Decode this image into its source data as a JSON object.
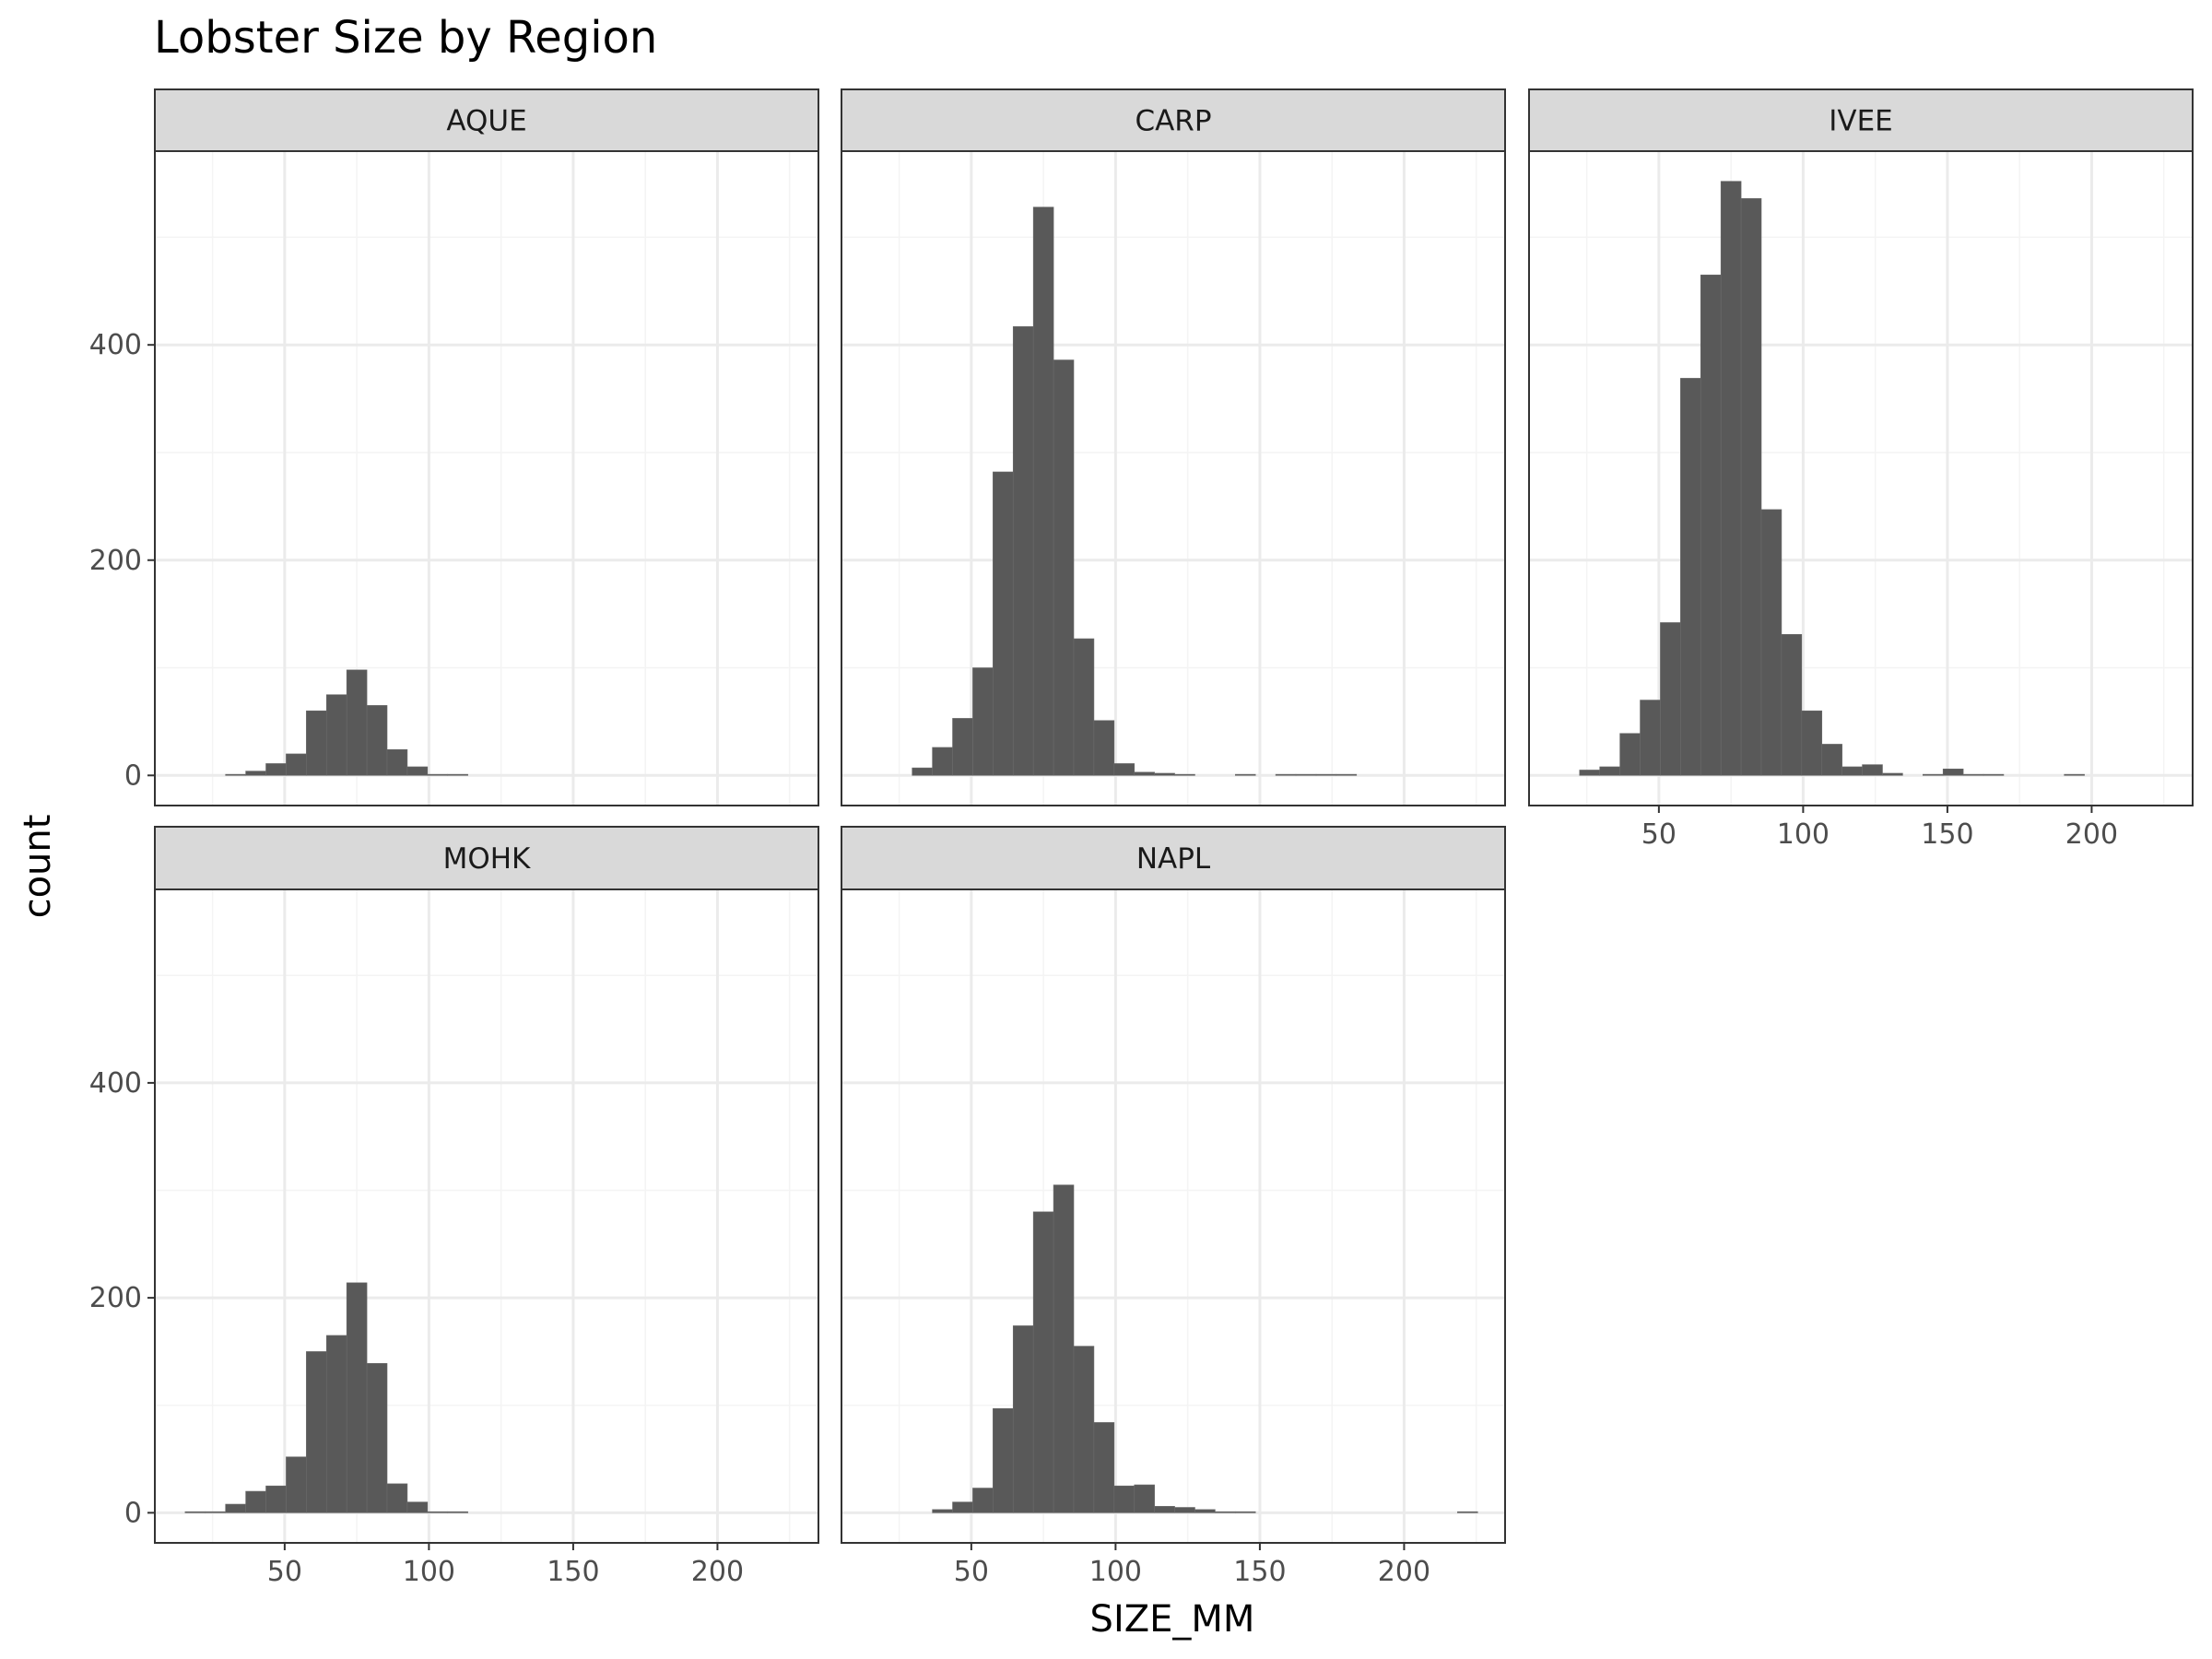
{
  "chart_data": {
    "type": "bar",
    "subtype": "faceted-histogram",
    "title": "Lobster Size by Region",
    "xlabel": "SIZE_MM",
    "ylabel": "count",
    "xlim": [
      5,
      235
    ],
    "ylim": [
      -28,
      580
    ],
    "x_ticks": [
      50,
      100,
      150,
      200
    ],
    "y_ticks": [
      0,
      200,
      400
    ],
    "bin_width": 7,
    "grid": true,
    "legend": "none",
    "colors": {
      "bar": "#595959",
      "panel_border": "#333333",
      "grid_major": "#ebebeb",
      "grid_minor": "#f4f4f4",
      "strip_fill": "#d9d9d9"
    },
    "facets": [
      {
        "name": "AQUE",
        "bins": [
          [
            33,
            1
          ],
          [
            40,
            4
          ],
          [
            47,
            11
          ],
          [
            54,
            20
          ],
          [
            61,
            60
          ],
          [
            68,
            75
          ],
          [
            75,
            98
          ],
          [
            82,
            65
          ],
          [
            89,
            24
          ],
          [
            96,
            8
          ],
          [
            103,
            1
          ],
          [
            110,
            1
          ]
        ]
      },
      {
        "name": "CARP",
        "bins": [
          [
            33,
            7
          ],
          [
            40,
            26
          ],
          [
            47,
            53
          ],
          [
            54,
            100
          ],
          [
            61,
            282
          ],
          [
            68,
            417
          ],
          [
            75,
            528
          ],
          [
            82,
            386
          ],
          [
            89,
            127
          ],
          [
            96,
            51
          ],
          [
            103,
            11
          ],
          [
            110,
            3
          ],
          [
            117,
            2
          ],
          [
            124,
            1
          ],
          [
            145,
            1
          ],
          [
            159,
            1
          ],
          [
            166,
            1
          ],
          [
            173,
            1
          ],
          [
            180,
            1
          ]
        ]
      },
      {
        "name": "IVEE",
        "bins": [
          [
            26,
            5
          ],
          [
            33,
            8
          ],
          [
            40,
            39
          ],
          [
            47,
            70
          ],
          [
            54,
            142
          ],
          [
            61,
            369
          ],
          [
            68,
            465
          ],
          [
            75,
            552
          ],
          [
            82,
            536
          ],
          [
            89,
            247
          ],
          [
            96,
            131
          ],
          [
            103,
            60
          ],
          [
            110,
            29
          ],
          [
            117,
            8
          ],
          [
            124,
            10
          ],
          [
            131,
            2
          ],
          [
            145,
            1
          ],
          [
            152,
            6
          ],
          [
            159,
            1
          ],
          [
            166,
            1
          ],
          [
            194,
            1
          ]
        ]
      },
      {
        "name": "MOHK",
        "bins": [
          [
            19,
            1
          ],
          [
            26,
            1
          ],
          [
            33,
            8
          ],
          [
            40,
            20
          ],
          [
            47,
            25
          ],
          [
            54,
            52
          ],
          [
            61,
            150
          ],
          [
            68,
            165
          ],
          [
            75,
            214
          ],
          [
            82,
            139
          ],
          [
            89,
            27
          ],
          [
            96,
            10
          ],
          [
            103,
            1
          ],
          [
            110,
            1
          ]
        ]
      },
      {
        "name": "NAPL",
        "bins": [
          [
            40,
            3
          ],
          [
            47,
            10
          ],
          [
            54,
            23
          ],
          [
            61,
            97
          ],
          [
            68,
            174
          ],
          [
            75,
            280
          ],
          [
            82,
            305
          ],
          [
            89,
            155
          ],
          [
            96,
            84
          ],
          [
            103,
            25
          ],
          [
            110,
            26
          ],
          [
            117,
            6
          ],
          [
            124,
            5
          ],
          [
            131,
            3
          ],
          [
            138,
            1
          ],
          [
            145,
            1
          ],
          [
            222,
            1
          ]
        ]
      }
    ]
  }
}
